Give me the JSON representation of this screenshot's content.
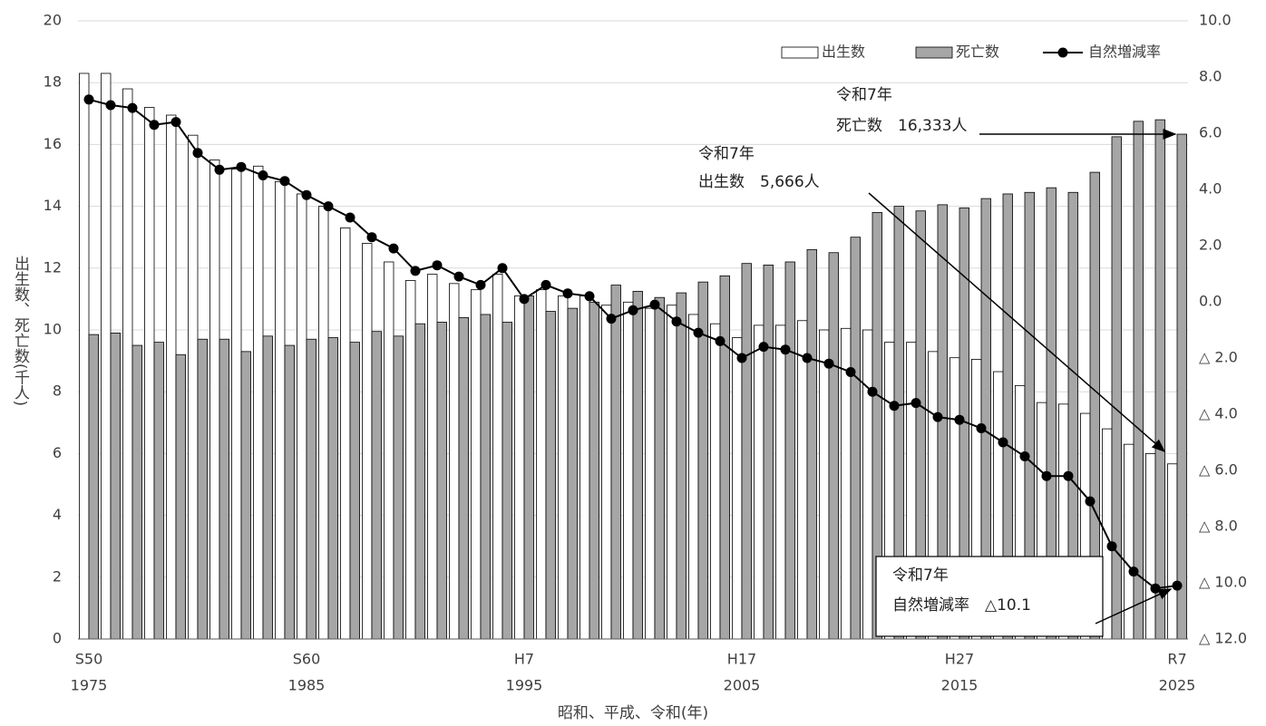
{
  "chart_data": {
    "type": "bar",
    "y_label": "出生数、死亡数(千人)",
    "x_label": "昭和、平成、令和(年)",
    "categories": [
      "S50",
      null,
      null,
      null,
      null,
      null,
      null,
      null,
      null,
      null,
      "S60",
      null,
      null,
      null,
      null,
      null,
      null,
      null,
      null,
      null,
      "H7",
      null,
      null,
      null,
      null,
      null,
      null,
      null,
      null,
      null,
      "H17",
      null,
      null,
      null,
      null,
      null,
      null,
      null,
      null,
      null,
      "H27",
      null,
      null,
      null,
      null,
      null,
      null,
      null,
      null,
      null,
      "R7"
    ],
    "category_years": [
      "1975",
      null,
      null,
      null,
      null,
      null,
      null,
      null,
      null,
      null,
      "1985",
      null,
      null,
      null,
      null,
      null,
      null,
      null,
      null,
      null,
      "1995",
      null,
      null,
      null,
      null,
      null,
      null,
      null,
      null,
      null,
      "2005",
      null,
      null,
      null,
      null,
      null,
      null,
      null,
      null,
      null,
      "2015",
      null,
      null,
      null,
      null,
      null,
      null,
      null,
      null,
      null,
      "2025"
    ],
    "series": [
      {
        "name": "出生数",
        "color": "#ffffff",
        "values": [
          18.3,
          18.3,
          17.8,
          17.2,
          16.95,
          16.3,
          15.5,
          15.2,
          15.3,
          14.8,
          14.4,
          14.0,
          13.3,
          12.8,
          12.2,
          11.6,
          11.8,
          11.5,
          11.3,
          11.8,
          11.1,
          11.3,
          11.1,
          11.1,
          10.8,
          10.9,
          10.7,
          10.8,
          10.5,
          10.2,
          9.75,
          10.15,
          10.15,
          10.3,
          10.0,
          10.05,
          10.0,
          9.6,
          9.6,
          9.3,
          9.1,
          9.05,
          8.65,
          8.2,
          7.65,
          7.6,
          7.3,
          6.8,
          6.3,
          6.0,
          5.666
        ]
      },
      {
        "name": "死亡数",
        "color": "#a6a6a6",
        "values": [
          9.85,
          9.9,
          9.5,
          9.6,
          9.2,
          9.7,
          9.7,
          9.3,
          9.8,
          9.5,
          9.7,
          9.75,
          9.6,
          9.95,
          9.8,
          10.2,
          10.25,
          10.4,
          10.5,
          10.25,
          11.1,
          10.6,
          10.7,
          10.9,
          11.45,
          11.25,
          11.05,
          11.2,
          11.55,
          11.75,
          12.15,
          12.1,
          12.2,
          12.6,
          12.5,
          13.0,
          13.8,
          14.0,
          13.85,
          14.05,
          13.95,
          14.25,
          14.4,
          14.45,
          14.6,
          14.45,
          15.1,
          16.25,
          16.75,
          16.8,
          16.333
        ]
      },
      {
        "name": "自然増減率",
        "color": "#000000",
        "type": "line",
        "axis": "y2",
        "values": [
          7.2,
          7.0,
          6.9,
          6.3,
          6.4,
          5.3,
          4.7,
          4.8,
          4.5,
          4.3,
          3.8,
          3.4,
          3.0,
          2.3,
          1.9,
          1.1,
          1.3,
          0.9,
          0.6,
          1.2,
          0.1,
          0.6,
          0.3,
          0.2,
          -0.6,
          -0.3,
          -0.1,
          -0.7,
          -1.1,
          -1.4,
          -2.0,
          -1.6,
          -1.7,
          -2.0,
          -2.2,
          -2.5,
          -3.2,
          -3.7,
          -3.6,
          -4.1,
          -4.2,
          -4.5,
          -5.0,
          -5.5,
          -6.2,
          -6.2,
          -7.1,
          -8.7,
          -9.6,
          -10.2,
          -10.1
        ]
      }
    ],
    "ylim": [
      0,
      20
    ],
    "yticks": [
      0,
      2,
      4,
      6,
      8,
      10,
      12,
      14,
      16,
      18,
      20
    ],
    "y2lim": [
      -12,
      10
    ],
    "y2ticks": [
      {
        "value": 10,
        "label": "10.0"
      },
      {
        "value": 8,
        "label": "8.0"
      },
      {
        "value": 6,
        "label": "6.0"
      },
      {
        "value": 4,
        "label": "4.0"
      },
      {
        "value": 2,
        "label": "2.0"
      },
      {
        "value": 0,
        "label": "0.0"
      },
      {
        "value": -2,
        "label": "△ 2.0"
      },
      {
        "value": -4,
        "label": "△ 4.0"
      },
      {
        "value": -6,
        "label": "△ 6.0"
      },
      {
        "value": -8,
        "label": "△ 8.0"
      },
      {
        "value": -10,
        "label": "△ 10.0"
      },
      {
        "value": -12,
        "label": "△ 12.0"
      }
    ],
    "grid": true,
    "legend": "top-right",
    "annotations": [
      {
        "lines": [
          "令和7年",
          "死亡数　16,333人"
        ]
      },
      {
        "lines": [
          "令和7年",
          "出生数　5,666人"
        ]
      },
      {
        "lines": [
          "令和7年",
          "自然増減率　△10.1"
        ]
      }
    ]
  }
}
